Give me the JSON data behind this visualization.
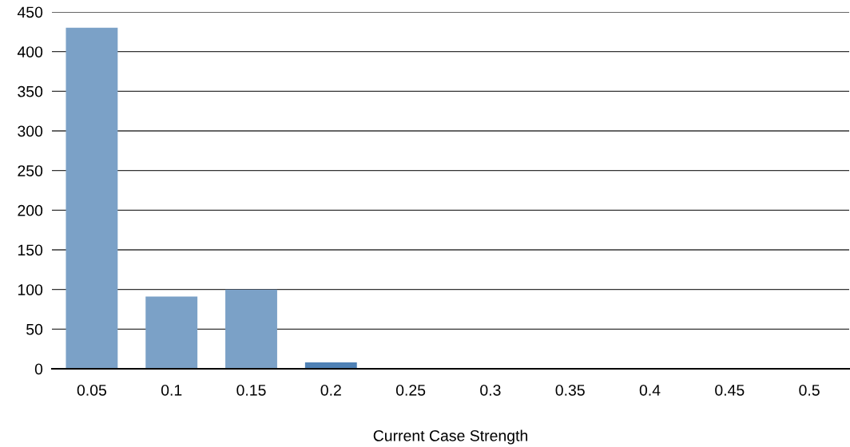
{
  "chart_data": {
    "type": "bar",
    "xlabel": "Current Case Strength",
    "categories": [
      "0.05",
      "0.1",
      "0.15",
      "0.2",
      "0.25",
      "0.3",
      "0.35",
      "0.4",
      "0.45",
      "0.5"
    ],
    "values": [
      430,
      91,
      100,
      8,
      0,
      0,
      0,
      0,
      0,
      0
    ],
    "colors": [
      "#7ba1c7",
      "#7ba1c7",
      "#7ba1c7",
      "#4f81b5",
      "#7ba1c7",
      "#7ba1c7",
      "#7ba1c7",
      "#7ba1c7",
      "#7ba1c7",
      "#7ba1c7"
    ],
    "ylim": [
      0,
      450
    ],
    "yticks": [
      0,
      50,
      100,
      150,
      200,
      250,
      300,
      350,
      400,
      450
    ],
    "grid": "y"
  }
}
